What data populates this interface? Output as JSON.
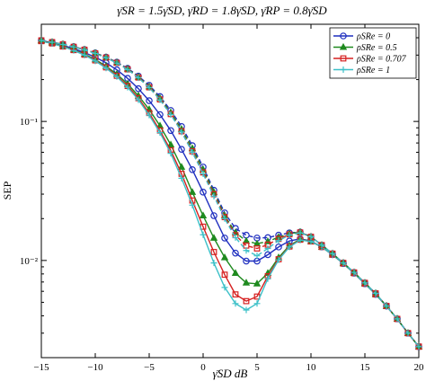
{
  "chart_data": {
    "type": "line",
    "title": "γ̄SR = 1.5γ̄SD, γ̄RD = 1.8γ̄SD, γ̄RP = 0.8γ̄SD",
    "xlabel": "γ̄SD dB",
    "ylabel": "SEP",
    "xlim": [
      -15,
      20
    ],
    "ylim": [
      0.002,
      0.5
    ],
    "yscale": "log",
    "grid": false,
    "legend_position": "top-right",
    "x_ticks": [
      -15,
      -10,
      -5,
      0,
      5,
      10,
      15,
      20
    ],
    "x_tick_labels": [
      "−15",
      "−10",
      "−5",
      "0",
      "5",
      "10",
      "15",
      "20"
    ],
    "y_ticks": [
      0.01,
      0.1
    ],
    "y_tick_labels": [
      "10⁻²",
      "10⁻¹"
    ],
    "x": [
      -15,
      -14,
      -13,
      -12,
      -11,
      -10,
      -9,
      -8,
      -7,
      -6,
      -5,
      -4,
      -3,
      -2,
      -1,
      0,
      1,
      2,
      3,
      4,
      5,
      6,
      7,
      8,
      9,
      10,
      11,
      12,
      13,
      14,
      15,
      16,
      17,
      18,
      19,
      20
    ],
    "series": [
      {
        "name": "ρSRe = 0",
        "color": "#1f2fbf",
        "marker": "circle",
        "style": "solid",
        "values": [
          0.382,
          0.368,
          0.352,
          0.334,
          0.313,
          0.29,
          0.264,
          0.235,
          0.204,
          0.172,
          0.141,
          0.112,
          0.086,
          0.063,
          0.045,
          0.031,
          0.021,
          0.0145,
          0.0113,
          0.0099,
          0.0099,
          0.011,
          0.0125,
          0.0138,
          0.0143,
          0.0138,
          0.0125,
          0.011,
          0.0095,
          0.0081,
          0.0068,
          0.0057,
          0.0047,
          0.0038,
          0.003,
          0.0024
        ]
      },
      {
        "name": "ρSRe = 0.5",
        "color": "#1f8a1f",
        "marker": "triangle",
        "style": "solid",
        "values": [
          0.38,
          0.366,
          0.348,
          0.328,
          0.305,
          0.279,
          0.25,
          0.219,
          0.186,
          0.153,
          0.122,
          0.093,
          0.068,
          0.047,
          0.031,
          0.021,
          0.0145,
          0.0105,
          0.0081,
          0.0069,
          0.0068,
          0.0081,
          0.0105,
          0.0128,
          0.0142,
          0.0137,
          0.0125,
          0.011,
          0.0095,
          0.0081,
          0.0068,
          0.0057,
          0.0047,
          0.0038,
          0.003,
          0.0024
        ]
      },
      {
        "name": "ρSRe = 0.707",
        "color": "#d62020",
        "marker": "square",
        "style": "solid",
        "values": [
          0.378,
          0.364,
          0.346,
          0.326,
          0.302,
          0.275,
          0.245,
          0.213,
          0.18,
          0.147,
          0.115,
          0.086,
          0.062,
          0.042,
          0.027,
          0.0175,
          0.0115,
          0.0079,
          0.0057,
          0.0051,
          0.0055,
          0.0077,
          0.0102,
          0.0126,
          0.0141,
          0.0137,
          0.0125,
          0.011,
          0.0095,
          0.0081,
          0.0068,
          0.0057,
          0.0047,
          0.0038,
          0.003,
          0.0024
        ]
      },
      {
        "name": "ρSRe = 1",
        "color": "#3cc0c8",
        "marker": "plus",
        "style": "solid",
        "values": [
          0.377,
          0.363,
          0.345,
          0.324,
          0.3,
          0.272,
          0.242,
          0.21,
          0.176,
          0.143,
          0.111,
          0.083,
          0.059,
          0.039,
          0.025,
          0.0153,
          0.0096,
          0.0064,
          0.0049,
          0.0044,
          0.0049,
          0.0074,
          0.0101,
          0.0125,
          0.014,
          0.0137,
          0.0125,
          0.011,
          0.0095,
          0.0081,
          0.0068,
          0.0057,
          0.0047,
          0.0038,
          0.003,
          0.0024
        ]
      },
      {
        "name": "",
        "color": "#1f2fbf",
        "marker": "circle",
        "style": "dashed",
        "values": [
          0.383,
          0.372,
          0.359,
          0.345,
          0.329,
          0.311,
          0.29,
          0.267,
          0.241,
          0.212,
          0.182,
          0.151,
          0.12,
          0.092,
          0.067,
          0.047,
          0.032,
          0.022,
          0.017,
          0.0152,
          0.0145,
          0.0146,
          0.0152,
          0.0158,
          0.016,
          0.0148,
          0.0129,
          0.0112,
          0.0096,
          0.0082,
          0.0069,
          0.0058,
          0.0047,
          0.0038,
          0.003,
          0.0024
        ]
      },
      {
        "name": "",
        "color": "#1f8a1f",
        "marker": "triangle",
        "style": "dashed",
        "values": [
          0.383,
          0.372,
          0.359,
          0.344,
          0.328,
          0.31,
          0.289,
          0.265,
          0.239,
          0.209,
          0.178,
          0.147,
          0.116,
          0.088,
          0.064,
          0.045,
          0.031,
          0.021,
          0.0159,
          0.0138,
          0.0132,
          0.0137,
          0.0147,
          0.0156,
          0.016,
          0.0148,
          0.0129,
          0.0112,
          0.0096,
          0.0082,
          0.0069,
          0.0058,
          0.0047,
          0.0038,
          0.003,
          0.0024
        ]
      },
      {
        "name": "",
        "color": "#d62020",
        "marker": "square",
        "style": "dashed",
        "values": [
          0.383,
          0.372,
          0.359,
          0.344,
          0.328,
          0.309,
          0.288,
          0.264,
          0.237,
          0.207,
          0.176,
          0.144,
          0.113,
          0.085,
          0.061,
          0.043,
          0.03,
          0.0205,
          0.0152,
          0.0128,
          0.0122,
          0.013,
          0.0143,
          0.0154,
          0.0159,
          0.0148,
          0.0129,
          0.0112,
          0.0096,
          0.0082,
          0.0069,
          0.0058,
          0.0047,
          0.0038,
          0.003,
          0.0024
        ]
      },
      {
        "name": "",
        "color": "#3cc0c8",
        "marker": "plus",
        "style": "dashed",
        "values": [
          0.382,
          0.371,
          0.358,
          0.343,
          0.327,
          0.308,
          0.287,
          0.263,
          0.236,
          0.206,
          0.175,
          0.143,
          0.112,
          0.084,
          0.06,
          0.042,
          0.029,
          0.02,
          0.0146,
          0.0118,
          0.0108,
          0.0122,
          0.0139,
          0.0152,
          0.0158,
          0.0148,
          0.0129,
          0.0112,
          0.0096,
          0.0082,
          0.0069,
          0.0058,
          0.0047,
          0.0038,
          0.003,
          0.0024
        ]
      }
    ]
  }
}
